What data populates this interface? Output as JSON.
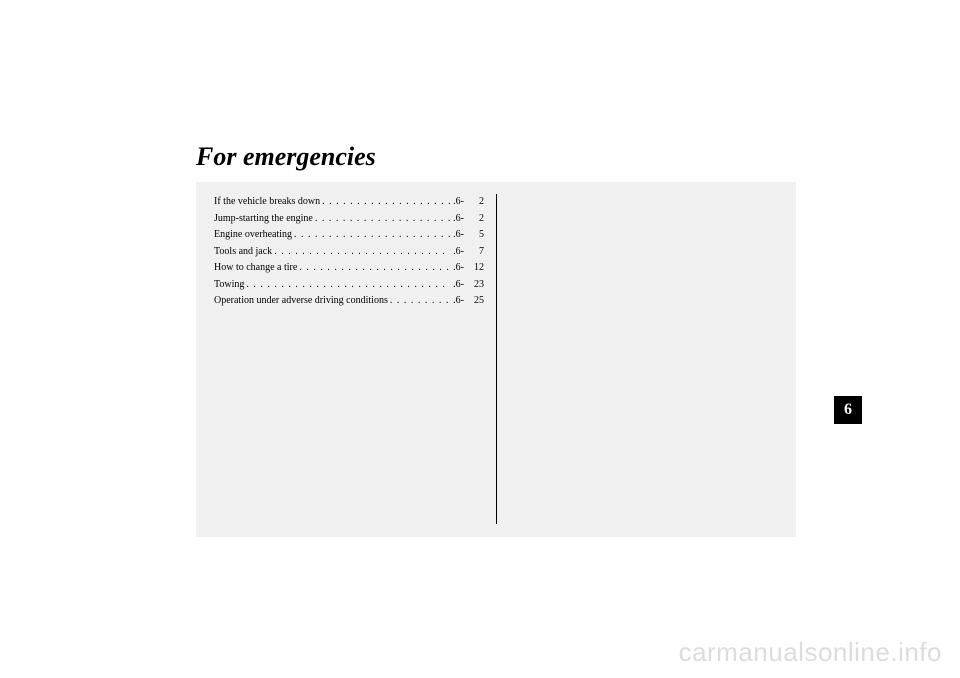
{
  "chapter_title": "For emergencies",
  "chapter_number": "6",
  "toc": [
    {
      "label": "If the vehicle breaks down",
      "chapter": ".6-",
      "page": "2"
    },
    {
      "label": "Jump-starting the engine",
      "chapter": ".6-",
      "page": "2"
    },
    {
      "label": "Engine overheating",
      "chapter": ".6-",
      "page": "5"
    },
    {
      "label": "Tools and jack",
      "chapter": ".6-",
      "page": "7"
    },
    {
      "label": "How to change a tire",
      "chapter": ".6-",
      "page": "12"
    },
    {
      "label": "Towing",
      "chapter": ".6-",
      "page": "23"
    },
    {
      "label": "Operation under adverse driving conditions",
      "chapter": ".6-",
      "page": "25"
    }
  ],
  "watermark": "carmanualsonline.info",
  "dots": ". . . . . . . . . . . . . . . . . . . . . . . . . . . . . . . . . . . . . . . ."
}
